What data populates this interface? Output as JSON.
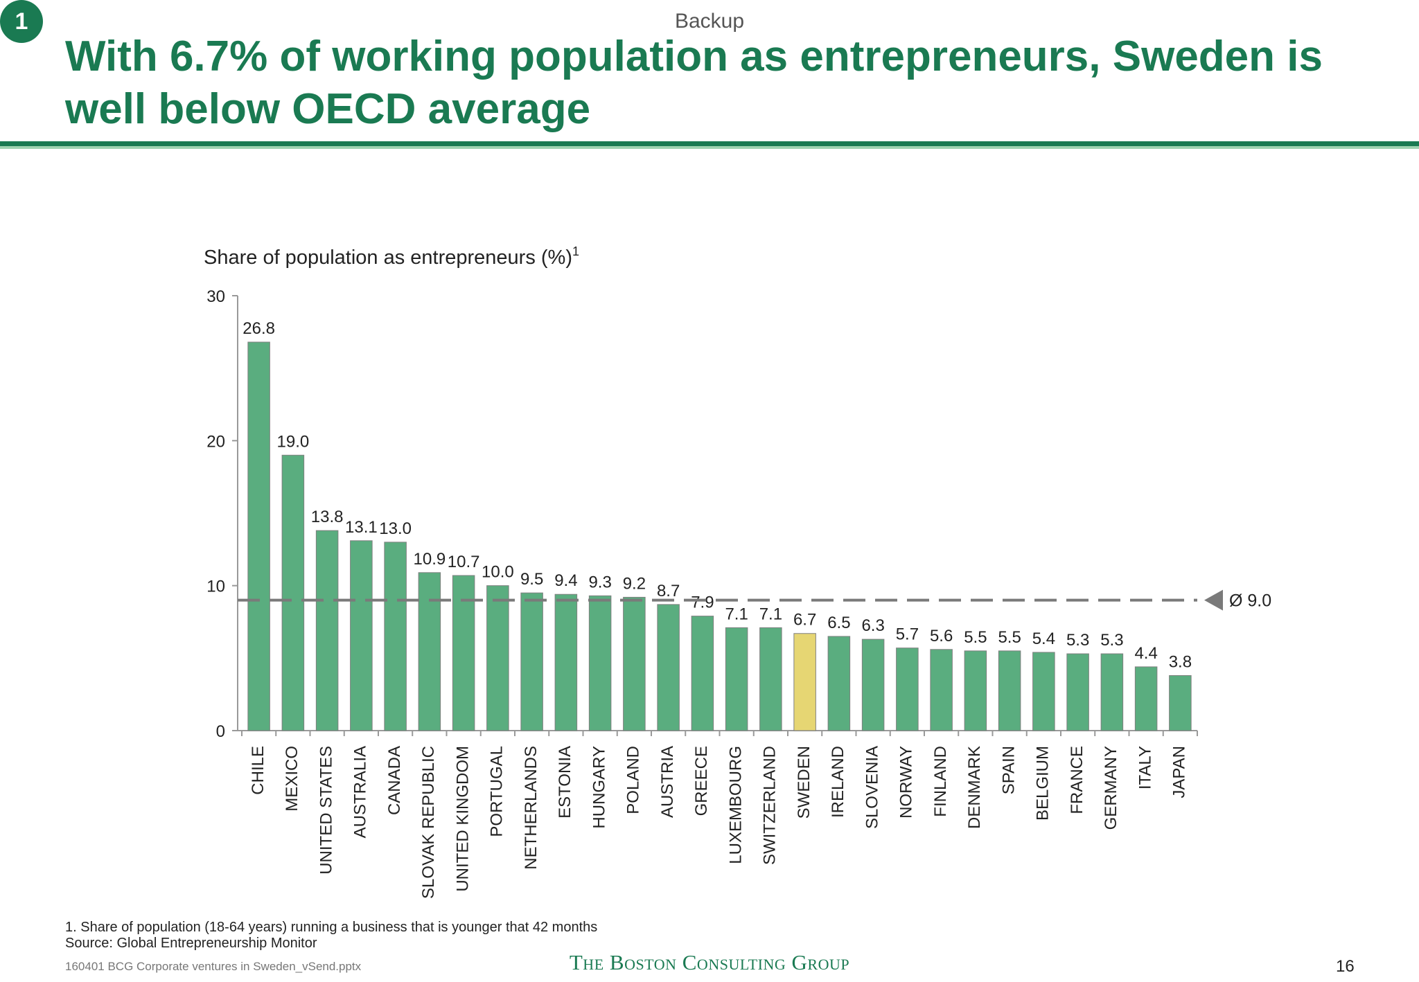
{
  "slide": {
    "badge": "1",
    "tag": "Backup",
    "title": "With 6.7% of working population as entrepreneurs, Sweden is well below OECD average",
    "footnote_1": "1. Share of population (18-64 years) running a business that is younger that 42 months",
    "footnote_2": "Source: Global Entrepreneurship Monitor",
    "file": "160401 BCG Corporate ventures in Sweden_vSend.pptx",
    "logo": "The Boston Consulting Group",
    "page": "16"
  },
  "chart_data": {
    "type": "bar",
    "title": "Share of population as entrepreneurs (%)",
    "title_superscript": "1",
    "ylim": [
      0,
      30
    ],
    "yticks": [
      0,
      10,
      20,
      30
    ],
    "categories": [
      "CHILE",
      "MEXICO",
      "UNITED STATES",
      "AUSTRALIA",
      "CANADA",
      "SLOVAK REPUBLIC",
      "UNITED KINGDOM",
      "PORTUGAL",
      "NETHERLANDS",
      "ESTONIA",
      "HUNGARY",
      "POLAND",
      "AUSTRIA",
      "GREECE",
      "LUXEMBOURG",
      "SWITZERLAND",
      "SWEDEN",
      "IRELAND",
      "SLOVENIA",
      "NORWAY",
      "FINLAND",
      "DENMARK",
      "SPAIN",
      "BELGIUM",
      "FRANCE",
      "GERMANY",
      "ITALY",
      "JAPAN"
    ],
    "values": [
      26.8,
      19.0,
      13.8,
      13.1,
      13.0,
      10.9,
      10.7,
      10.0,
      9.5,
      9.4,
      9.3,
      9.2,
      8.7,
      7.9,
      7.1,
      7.1,
      6.7,
      6.5,
      6.3,
      5.7,
      5.6,
      5.5,
      5.5,
      5.4,
      5.3,
      5.3,
      4.4,
      3.8
    ],
    "labels": [
      "26.8",
      "19.0",
      "13.8",
      "13.1",
      "13.0",
      "10.9",
      "10.7",
      "10.0",
      "9.5",
      "9.4",
      "9.3",
      "9.2",
      "8.7",
      "7.9",
      "7.1",
      "7.1",
      "6.7",
      "6.5",
      "6.3",
      "5.7",
      "5.6",
      "5.5",
      "5.5",
      "5.4",
      "5.3",
      "5.3",
      "4.4",
      "3.8"
    ],
    "highlight": "SWEDEN",
    "average": {
      "value": 9.0,
      "label": "Ø 9.0"
    },
    "colors": {
      "bar": "#5aad7f",
      "highlight": "#e6d673",
      "average_line": "#7a7a7a",
      "accent": "#1a7a52"
    },
    "grid": false
  }
}
